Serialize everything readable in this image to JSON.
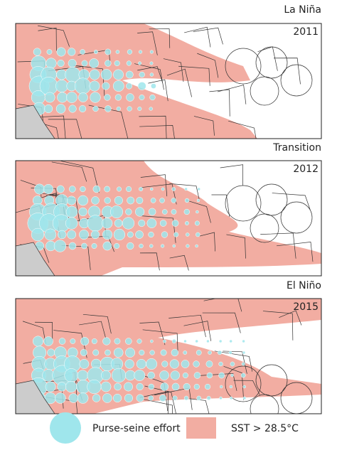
{
  "panels": [
    {
      "phase": "La Niña",
      "year": "2011"
    },
    {
      "phase": "Transition",
      "year": "2012"
    },
    {
      "phase": "El Niño",
      "year": "2015"
    }
  ],
  "legend": {
    "effort": "Purse-seine effort",
    "sst": "SST > 28.5°C"
  }
}
